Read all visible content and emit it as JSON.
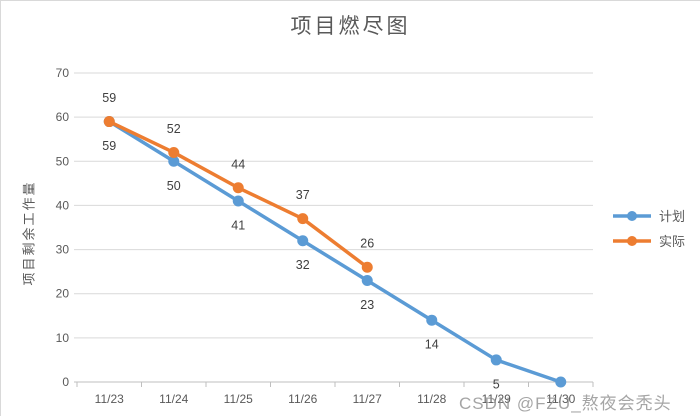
{
  "watermark": "CSDN @FZU_熬夜会秃头",
  "chart_data": {
    "type": "line",
    "title": "项目燃尽图",
    "xlabel": "",
    "ylabel": "项目剩余工作量",
    "categories": [
      "11/23",
      "11/24",
      "11/25",
      "11/26",
      "11/27",
      "11/28",
      "11/29",
      "11/30"
    ],
    "series": [
      {
        "name": "计划",
        "color": "#5B9BD5",
        "values": [
          59,
          50,
          41,
          32,
          23,
          14,
          5,
          0
        ],
        "data_labels": [
          "59",
          "50",
          "41",
          "32",
          "23",
          "14",
          "5",
          ""
        ],
        "label_position": "below"
      },
      {
        "name": "实际",
        "color": "#ED7D31",
        "values": [
          59,
          52,
          44,
          37,
          26
        ],
        "data_labels": [
          "59",
          "52",
          "44",
          "37",
          "26"
        ],
        "label_position": "above"
      }
    ],
    "ylim": [
      0,
      70
    ],
    "ytick_step": 10,
    "grid": true,
    "legend_position": "right",
    "gridline_color": "#d9d9d9",
    "axis_line_color": "#bfbfbf",
    "tick_label_color": "#595959",
    "data_label_color": "#404040"
  }
}
